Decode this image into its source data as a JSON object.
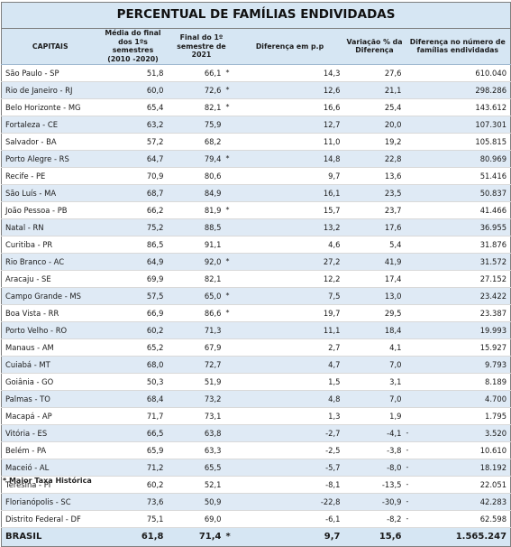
{
  "title": "PERCENTUAL DE FAMÍLIAS ENDIVIDADAS",
  "headers": {
    "capitais": "CAPITAIS",
    "media": "Média do final dos 1ºs semestres (2010 -2020)",
    "final": "Final do 1º semestre de 2021",
    "diferenca": "Diferença em p.p",
    "variacao": "Variação % da Diferença",
    "familias": "Diferença no número de famílias endividadas"
  },
  "rows": [
    {
      "capital": "São Paulo - SP",
      "media": "51,8",
      "final": "66,1",
      "flag": "*",
      "dif": "14,3",
      "var": "27,6",
      "dash": "",
      "fam": "610.040"
    },
    {
      "capital": "Rio de Janeiro - RJ",
      "media": "60,0",
      "final": "72,6",
      "flag": "*",
      "dif": "12,6",
      "var": "21,1",
      "dash": "",
      "fam": "298.286"
    },
    {
      "capital": "Belo Horizonte - MG",
      "media": "65,4",
      "final": "82,1",
      "flag": "*",
      "dif": "16,6",
      "var": "25,4",
      "dash": "",
      "fam": "143.612"
    },
    {
      "capital": "Fortaleza - CE",
      "media": "63,2",
      "final": "75,9",
      "flag": "",
      "dif": "12,7",
      "var": "20,0",
      "dash": "",
      "fam": "107.301"
    },
    {
      "capital": "Salvador - BA",
      "media": "57,2",
      "final": "68,2",
      "flag": "",
      "dif": "11,0",
      "var": "19,2",
      "dash": "",
      "fam": "105.815"
    },
    {
      "capital": "Porto Alegre - RS",
      "media": "64,7",
      "final": "79,4",
      "flag": "*",
      "dif": "14,8",
      "var": "22,8",
      "dash": "",
      "fam": "80.969"
    },
    {
      "capital": "Recife - PE",
      "media": "70,9",
      "final": "80,6",
      "flag": "",
      "dif": "9,7",
      "var": "13,6",
      "dash": "",
      "fam": "51.416"
    },
    {
      "capital": "São Luís - MA",
      "media": "68,7",
      "final": "84,9",
      "flag": "",
      "dif": "16,1",
      "var": "23,5",
      "dash": "",
      "fam": "50.837"
    },
    {
      "capital": "João Pessoa - PB",
      "media": "66,2",
      "final": "81,9",
      "flag": "*",
      "dif": "15,7",
      "var": "23,7",
      "dash": "",
      "fam": "41.466"
    },
    {
      "capital": "Natal - RN",
      "media": "75,2",
      "final": "88,5",
      "flag": "",
      "dif": "13,2",
      "var": "17,6",
      "dash": "",
      "fam": "36.955"
    },
    {
      "capital": "Curitiba - PR",
      "media": "86,5",
      "final": "91,1",
      "flag": "",
      "dif": "4,6",
      "var": "5,4",
      "dash": "",
      "fam": "31.876"
    },
    {
      "capital": "Rio Branco - AC",
      "media": "64,9",
      "final": "92,0",
      "flag": "*",
      "dif": "27,2",
      "var": "41,9",
      "dash": "",
      "fam": "31.572"
    },
    {
      "capital": "Aracaju - SE",
      "media": "69,9",
      "final": "82,1",
      "flag": "",
      "dif": "12,2",
      "var": "17,4",
      "dash": "",
      "fam": "27.152"
    },
    {
      "capital": "Campo Grande - MS",
      "media": "57,5",
      "final": "65,0",
      "flag": "*",
      "dif": "7,5",
      "var": "13,0",
      "dash": "",
      "fam": "23.422"
    },
    {
      "capital": "Boa Vista - RR",
      "media": "66,9",
      "final": "86,6",
      "flag": "*",
      "dif": "19,7",
      "var": "29,5",
      "dash": "",
      "fam": "23.387"
    },
    {
      "capital": "Porto Velho - RO",
      "media": "60,2",
      "final": "71,3",
      "flag": "",
      "dif": "11,1",
      "var": "18,4",
      "dash": "",
      "fam": "19.993"
    },
    {
      "capital": "Manaus - AM",
      "media": "65,2",
      "final": "67,9",
      "flag": "",
      "dif": "2,7",
      "var": "4,1",
      "dash": "",
      "fam": "15.927"
    },
    {
      "capital": "Cuiabá - MT",
      "media": "68,0",
      "final": "72,7",
      "flag": "",
      "dif": "4,7",
      "var": "7,0",
      "dash": "",
      "fam": "9.793"
    },
    {
      "capital": "Goiânia - GO",
      "media": "50,3",
      "final": "51,9",
      "flag": "",
      "dif": "1,5",
      "var": "3,1",
      "dash": "",
      "fam": "8.189"
    },
    {
      "capital": "Palmas - TO",
      "media": "68,4",
      "final": "73,2",
      "flag": "",
      "dif": "4,8",
      "var": "7,0",
      "dash": "",
      "fam": "4.700"
    },
    {
      "capital": "Macapá - AP",
      "media": "71,7",
      "final": "73,1",
      "flag": "",
      "dif": "1,3",
      "var": "1,9",
      "dash": "",
      "fam": "1.795"
    },
    {
      "capital": "Vitória - ES",
      "media": "66,5",
      "final": "63,8",
      "flag": "",
      "dif": "-2,7",
      "var": "-4,1",
      "dash": "-",
      "fam": "3.520"
    },
    {
      "capital": "Belém - PA",
      "media": "65,9",
      "final": "63,3",
      "flag": "",
      "dif": "-2,5",
      "var": "-3,8",
      "dash": "-",
      "fam": "10.610"
    },
    {
      "capital": "Maceió - AL",
      "media": "71,2",
      "final": "65,5",
      "flag": "",
      "dif": "-5,7",
      "var": "-8,0",
      "dash": "-",
      "fam": "18.192"
    },
    {
      "capital": "Teresina - PI",
      "media": "60,2",
      "final": "52,1",
      "flag": "",
      "dif": "-8,1",
      "var": "-13,5",
      "dash": "-",
      "fam": "22.051"
    },
    {
      "capital": "Florianópolis - SC",
      "media": "73,6",
      "final": "50,9",
      "flag": "",
      "dif": "-22,8",
      "var": "-30,9",
      "dash": "-",
      "fam": "42.283"
    },
    {
      "capital": "Distrito Federal - DF",
      "media": "75,1",
      "final": "69,0",
      "flag": "",
      "dif": "-6,1",
      "var": "-8,2",
      "dash": "-",
      "fam": "62.598"
    }
  ],
  "total": {
    "capital": "BRASIL",
    "media": "61,8",
    "final": "71,4",
    "flag": "*",
    "dif": "9,7",
    "var": "15,6",
    "dash": "",
    "fam": "1.565.247"
  },
  "footnote": "* Maior Taxa Histórica"
}
